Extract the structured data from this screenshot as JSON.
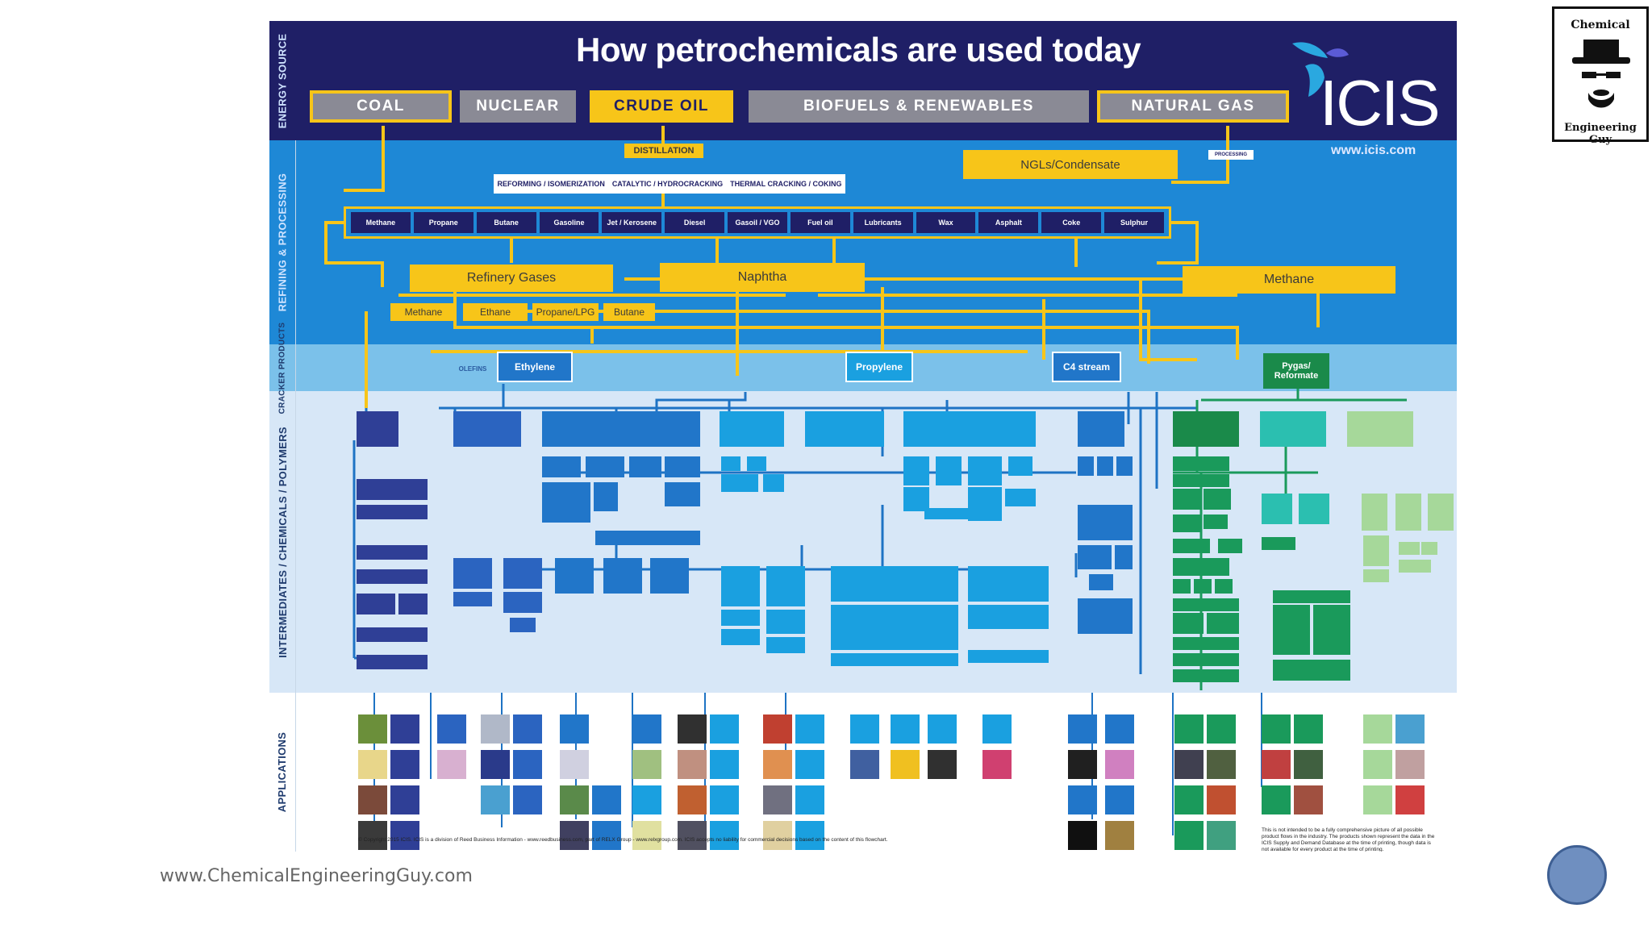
{
  "poster": {
    "title": "How petrochemicals are used today",
    "logo": "ICIS",
    "url": "www.icis.com",
    "bands": {
      "energy": "ENERGY SOURCE",
      "refining": "REFINING & PROCESSING",
      "cracker": "CRACKER PRODUCTS",
      "intermediates": "INTERMEDIATES / CHEMICALS / POLYMERS",
      "applications": "APPLICATIONS"
    },
    "sources": [
      "COAL",
      "NUCLEAR",
      "CRUDE OIL",
      "BIOFUELS & RENEWABLES",
      "NATURAL GAS"
    ],
    "distillation": "DISTILLATION",
    "ngls": "NGLs/Condensate",
    "processing": "PROCESSING",
    "processes": [
      "REFORMING / ISOMERIZATION",
      "CATALYTIC / HYDROCRACKING",
      "THERMAL CRACKING / COKING"
    ],
    "refinery_products": [
      "Methane",
      "Propane",
      "Butane",
      "Gasoline",
      "Jet / Kerosene",
      "Diesel",
      "Gasoil / VGO",
      "Fuel oil",
      "Lubricants",
      "Wax",
      "Asphalt",
      "Coke",
      "Sulphur"
    ],
    "refinery_gases": "Refinery Gases",
    "naphtha": "Naphtha",
    "methane_gas": "Methane",
    "gas_parts": [
      "Methane",
      "Ethane",
      "Propane/LPG",
      "Butane"
    ],
    "cracker_products": {
      "olefins": "OLEFINS",
      "ethylene": "Ethylene",
      "propylene": "Propylene",
      "c4": "C4 stream",
      "pygas": "Pygas/ Reformate"
    },
    "copyright": "© Copyright 2015 ICIS. ICIS is a division of Reed Business Information - www.reedbusiness.com, part of RELX Group - www.relxgroup.com. ICIS accepts no liability for commercial decisions based on the content of this flowchart.",
    "disclaimer": "This is not intended to be a fully comprehensive picture of all possible product flows in the industry. The products shown represent the data in the ICIS Supply and Demand Database at the time of printing, though data is not available for every product at the time of printing."
  },
  "overlay_logo": {
    "line1": "Chemical",
    "line2": "Engineering Guy"
  },
  "footer": {
    "url": "www.ChemicalEngineeringGuy.com"
  },
  "colors": {
    "navy": "#1f1f66",
    "blue": "#1e88d6",
    "yellow": "#f7c519",
    "green": "#1a9a5b"
  }
}
